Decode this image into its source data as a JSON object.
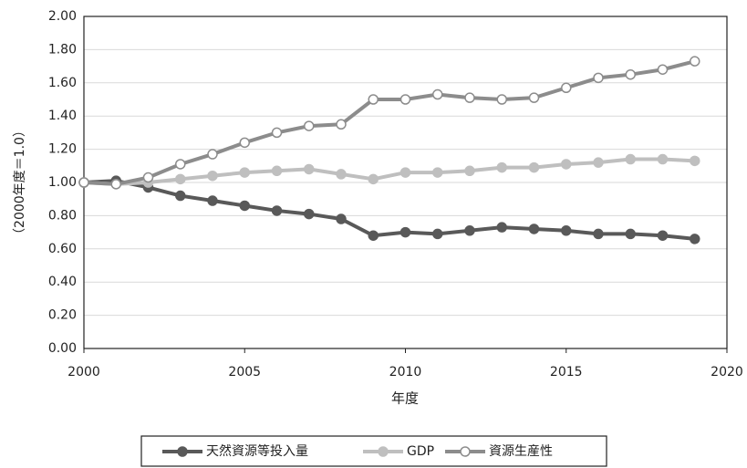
{
  "chart_data": {
    "type": "line",
    "x_label": "年度",
    "y_label": "（2000年度＝1.0）",
    "x": [
      2000,
      2001,
      2002,
      2003,
      2004,
      2005,
      2006,
      2007,
      2008,
      2009,
      2010,
      2011,
      2012,
      2013,
      2014,
      2015,
      2016,
      2017,
      2018,
      2019
    ],
    "series": [
      {
        "name": "天然資源等投入量",
        "color": "#595959",
        "marker": "filled",
        "values": [
          1.0,
          1.01,
          0.97,
          0.92,
          0.89,
          0.86,
          0.83,
          0.81,
          0.78,
          0.68,
          0.7,
          0.69,
          0.71,
          0.73,
          0.72,
          0.71,
          0.69,
          0.69,
          0.68,
          0.66
        ]
      },
      {
        "name": "GDP",
        "color": "#bfbfbf",
        "marker": "filled",
        "values": [
          1.0,
          0.99,
          1.0,
          1.02,
          1.04,
          1.06,
          1.07,
          1.08,
          1.05,
          1.02,
          1.06,
          1.06,
          1.07,
          1.09,
          1.09,
          1.11,
          1.12,
          1.14,
          1.14,
          1.13
        ]
      },
      {
        "name": "資源生産性",
        "color": "#8c8c8c",
        "marker": "hollow",
        "values": [
          1.0,
          0.99,
          1.03,
          1.11,
          1.17,
          1.24,
          1.3,
          1.34,
          1.35,
          1.5,
          1.5,
          1.53,
          1.51,
          1.5,
          1.51,
          1.57,
          1.63,
          1.65,
          1.68,
          1.73
        ]
      }
    ],
    "xlim": [
      2000,
      2020
    ],
    "xticks": [
      2000,
      2005,
      2010,
      2015,
      2020
    ],
    "ylim": [
      0,
      2
    ],
    "yticks": [
      {
        "value": 0,
        "label": "0.00"
      },
      {
        "value": 0.2,
        "label": "0.20"
      },
      {
        "value": 0.4,
        "label": "0.40"
      },
      {
        "value": 0.6,
        "label": "0.60"
      },
      {
        "value": 0.8,
        "label": "0.80"
      },
      {
        "value": 1,
        "label": "1.00"
      },
      {
        "value": 1.2,
        "label": "1.20"
      },
      {
        "value": 1.4,
        "label": "1.40"
      },
      {
        "value": 1.6,
        "label": "1.60"
      },
      {
        "value": 1.8,
        "label": "1.80"
      },
      {
        "value": 2,
        "label": "2.00"
      }
    ],
    "grid": true,
    "legend": "bottom"
  }
}
